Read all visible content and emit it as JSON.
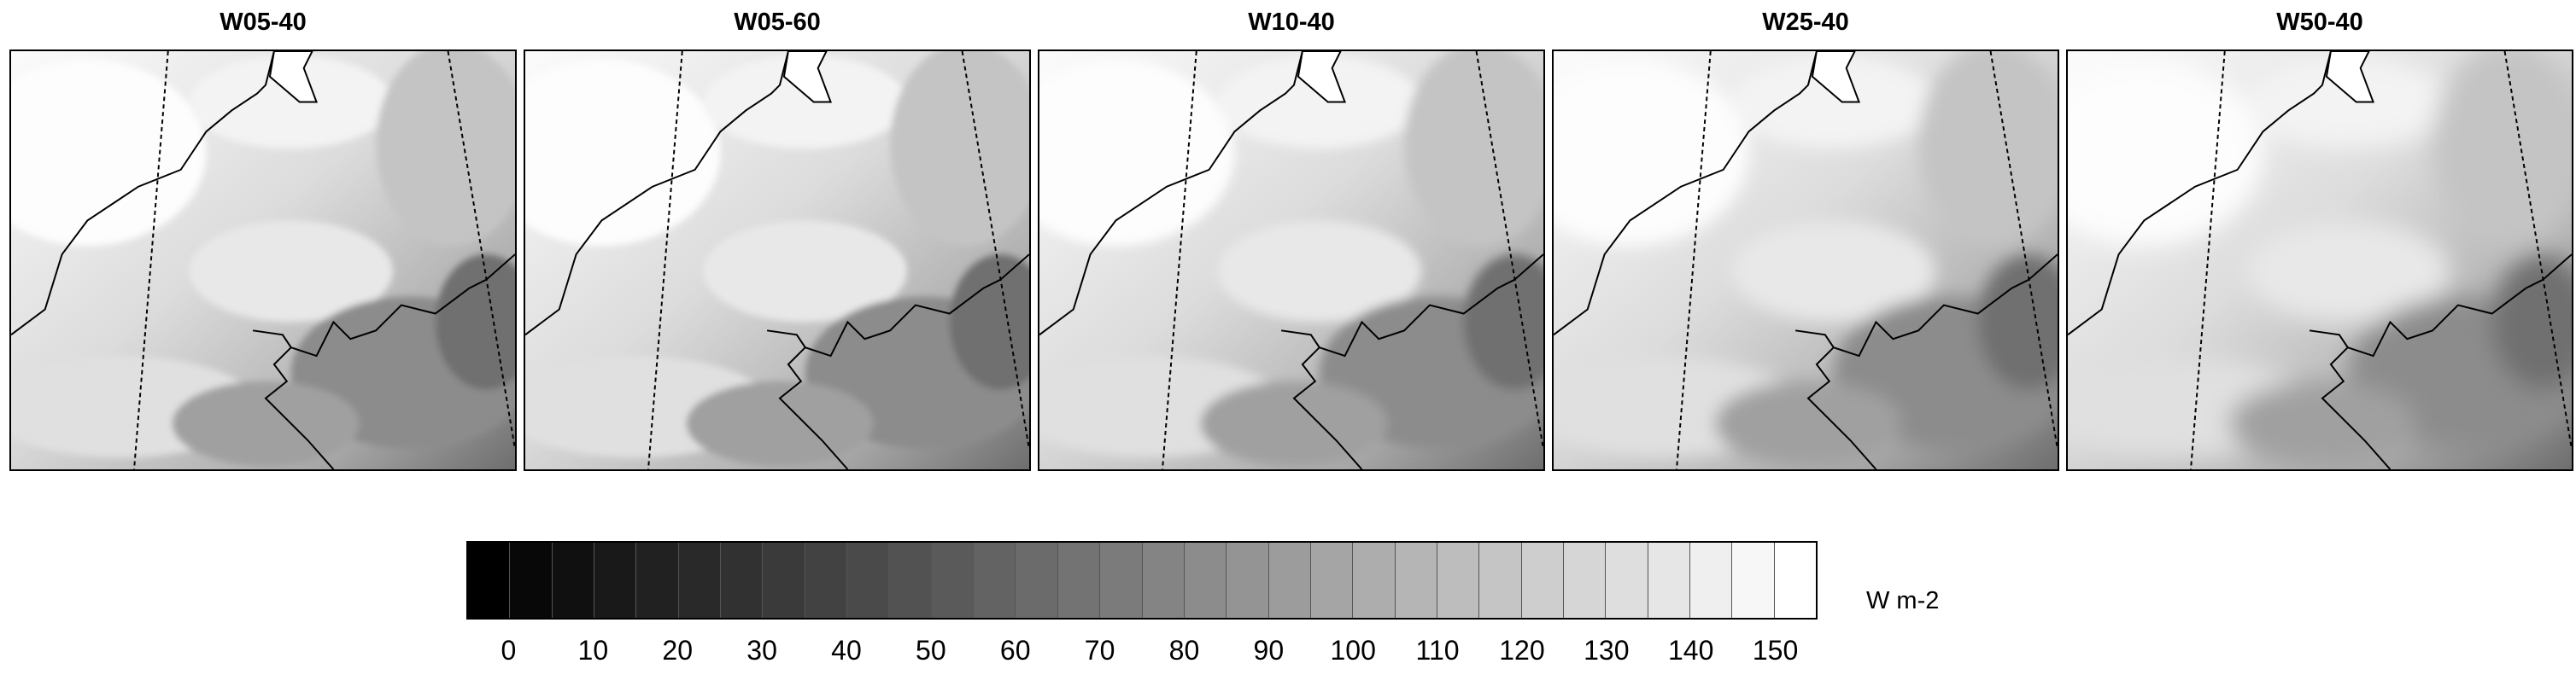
{
  "panels": [
    {
      "title": "W05-40"
    },
    {
      "title": "W05-60"
    },
    {
      "title": "W10-40"
    },
    {
      "title": "W25-40"
    },
    {
      "title": "W50-40"
    }
  ],
  "colorbar": {
    "min": 0,
    "max": 150,
    "step": 5,
    "tick_labels": [
      "0",
      "10",
      "20",
      "30",
      "40",
      "50",
      "60",
      "70",
      "80",
      "90",
      "100",
      "110",
      "120",
      "130",
      "140",
      "150"
    ],
    "unit": "W m-2"
  }
}
